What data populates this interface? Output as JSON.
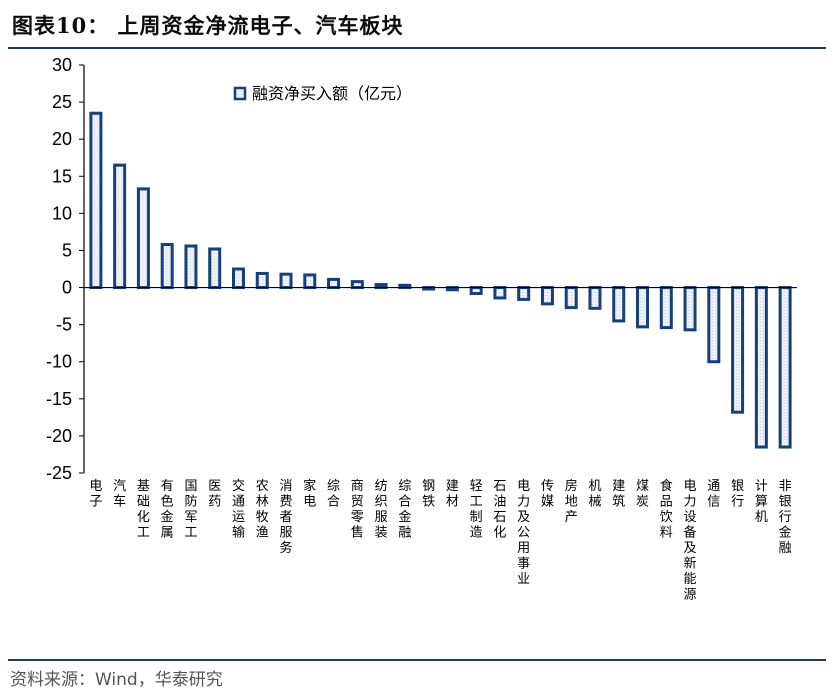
{
  "figure": {
    "title": "图表10：  上周资金净流电子、汽车板块",
    "source": "资料来源：Wind，华泰研究"
  },
  "colors": {
    "bar_border": "#17407a",
    "bar_fill": "#c9d6ea",
    "axis": "#000000",
    "rule": "#1f3a60"
  },
  "chart_data": {
    "type": "bar",
    "title": "",
    "xlabel": "",
    "ylabel": "",
    "ylim": [
      -25,
      30
    ],
    "yticks": [
      "30",
      "25",
      "20",
      "15",
      "10",
      "5",
      "0",
      "-5",
      "-10",
      "-15",
      "-20",
      "-25"
    ],
    "ytick_values": [
      30,
      25,
      20,
      15,
      10,
      5,
      0,
      -5,
      -10,
      -15,
      -20,
      -25
    ],
    "legend": {
      "label": "融资净买入额（亿元）",
      "position": "top"
    },
    "series": [
      {
        "name": "融资净买入额（亿元）",
        "values": [
          23.5,
          16.5,
          13.3,
          5.8,
          5.6,
          5.2,
          2.5,
          1.9,
          1.8,
          1.7,
          1.1,
          0.8,
          0.4,
          0.3,
          -0.1,
          -0.3,
          -0.8,
          -1.4,
          -1.6,
          -2.2,
          -2.7,
          -2.8,
          -4.5,
          -5.3,
          -5.4,
          -5.7,
          -10.0,
          -16.8,
          -21.5,
          -21.5
        ]
      }
    ],
    "categories": [
      "电子",
      "汽车",
      "基础化工",
      "有色金属",
      "国防军工",
      "医药",
      "交通运输",
      "农林牧渔",
      "消费者服务",
      "家电",
      "综合",
      "商贸零售",
      "纺织服装",
      "综合金融",
      "钢铁",
      "建材",
      "轻工制造",
      "石油石化",
      "电力及公用事业",
      "传媒",
      "房地产",
      "机械",
      "建筑",
      "煤炭",
      "食品饮料",
      "电力设备及新能源",
      "通信",
      "银行",
      "计算机",
      "非银行金融"
    ]
  }
}
